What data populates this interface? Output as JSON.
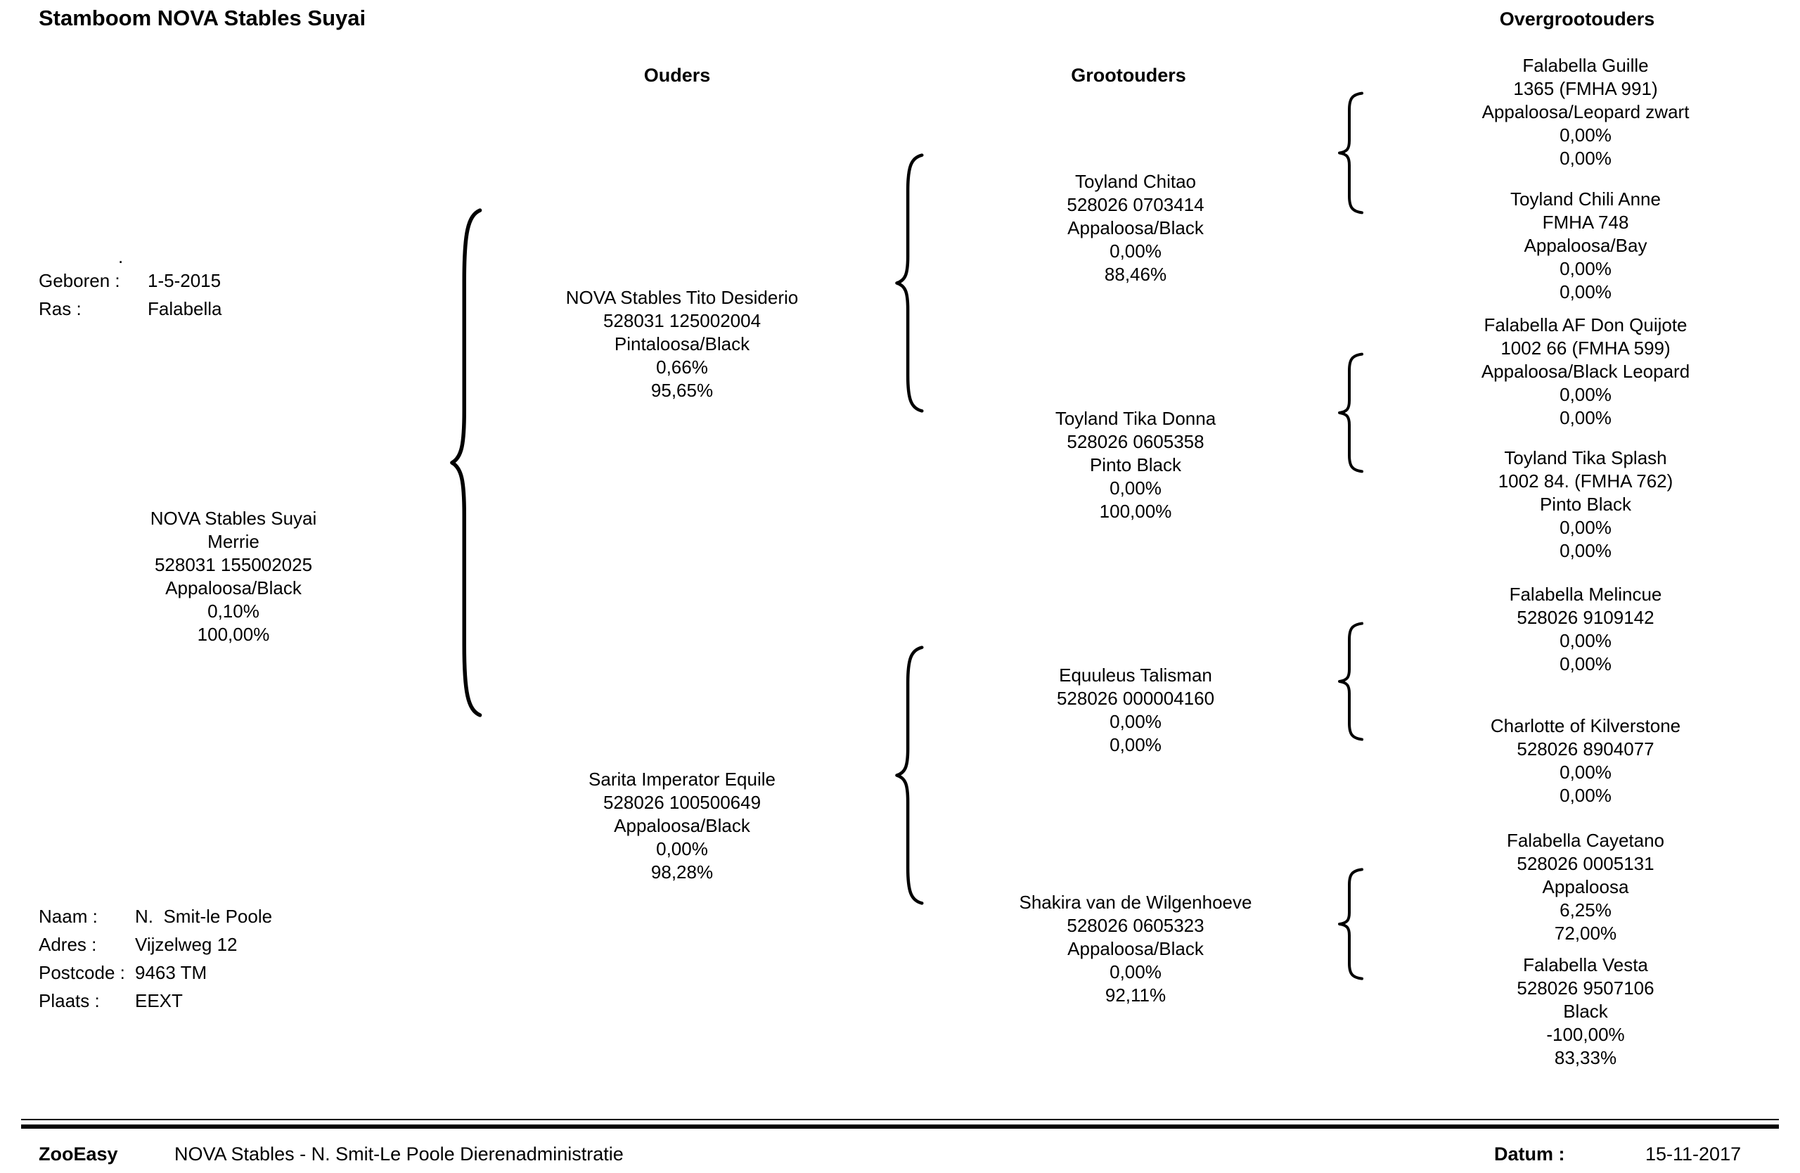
{
  "title": "Stamboom NOVA Stables Suyai",
  "column_headers": {
    "parents": "Ouders",
    "grandparents": "Grootouders",
    "great_grandparents": "Overgrootouders"
  },
  "subject_info": {
    "stray_dot": ".",
    "rows": [
      {
        "label": "Geboren :",
        "value": "1-5-2015"
      },
      {
        "label": "Ras :",
        "value": "Falabella"
      }
    ]
  },
  "owner_info": {
    "rows": [
      {
        "label": "Naam :",
        "value": "N.  Smit-le Poole"
      },
      {
        "label": "Adres :",
        "value": "Vijzelweg 12"
      },
      {
        "label": "Postcode :",
        "value": "9463 TM"
      },
      {
        "label": "Plaats :",
        "value": "EEXT"
      }
    ]
  },
  "subject": {
    "lines": [
      "NOVA Stables Suyai",
      "Merrie",
      "528031 155002025",
      "Appaloosa/Black",
      "0,10%",
      "100,00%"
    ]
  },
  "parents": [
    {
      "role": "father",
      "lines": [
        "NOVA Stables Tito Desiderio",
        "528031 125002004",
        "Pintaloosa/Black",
        "0,66%",
        "95,65%"
      ]
    },
    {
      "role": "mother",
      "lines": [
        "Sarita Imperator Equile",
        "528026 100500649",
        "Appaloosa/Black",
        "0,00%",
        "98,28%"
      ]
    }
  ],
  "grandparents": [
    {
      "lines": [
        "Toyland Chitao",
        "528026 0703414",
        "Appaloosa/Black",
        "0,00%",
        "88,46%"
      ]
    },
    {
      "lines": [
        "Toyland Tika Donna",
        "528026 0605358",
        "Pinto Black",
        "0,00%",
        "100,00%"
      ]
    },
    {
      "lines": [
        "Equuleus Talisman",
        "528026 000004160",
        "0,00%",
        "0,00%"
      ]
    },
    {
      "lines": [
        "Shakira van de Wilgenhoeve",
        "528026 0605323",
        "Appaloosa/Black",
        "0,00%",
        "92,11%"
      ]
    }
  ],
  "great_grandparents": [
    {
      "lines": [
        "Falabella Guille",
        "1365 (FMHA 991)",
        "Appaloosa/Leopard zwart",
        "0,00%",
        "0,00%"
      ]
    },
    {
      "lines": [
        "Toyland Chili Anne",
        "FMHA 748",
        "Appaloosa/Bay",
        "0,00%",
        "0,00%"
      ]
    },
    {
      "lines": [
        "Falabella AF Don Quijote",
        "1002 66 (FMHA 599)",
        "Appaloosa/Black Leopard",
        "0,00%",
        "0,00%"
      ]
    },
    {
      "lines": [
        "Toyland Tika Splash",
        "1002 84. (FMHA 762)",
        "Pinto Black",
        "0,00%",
        "0,00%"
      ]
    },
    {
      "lines": [
        "Falabella Melincue",
        "528026 9109142",
        "0,00%",
        "0,00%"
      ]
    },
    {
      "lines": [
        "Charlotte of Kilverstone",
        "528026 8904077",
        "0,00%",
        "0,00%"
      ]
    },
    {
      "lines": [
        "Falabella Cayetano",
        "528026 0005131",
        "Appaloosa",
        "6,25%",
        "72,00%"
      ]
    },
    {
      "lines": [
        "Falabella Vesta",
        "528026 9507106",
        "Black",
        "-100,00%",
        "83,33%"
      ]
    }
  ],
  "footer": {
    "brand": "ZooEasy",
    "administration": "NOVA Stables - N. Smit-Le Poole Dierenadministratie",
    "date_label": "Datum :",
    "date_value": "15-11-2017"
  },
  "colors": {
    "text": "#000000",
    "background": "#ffffff"
  }
}
